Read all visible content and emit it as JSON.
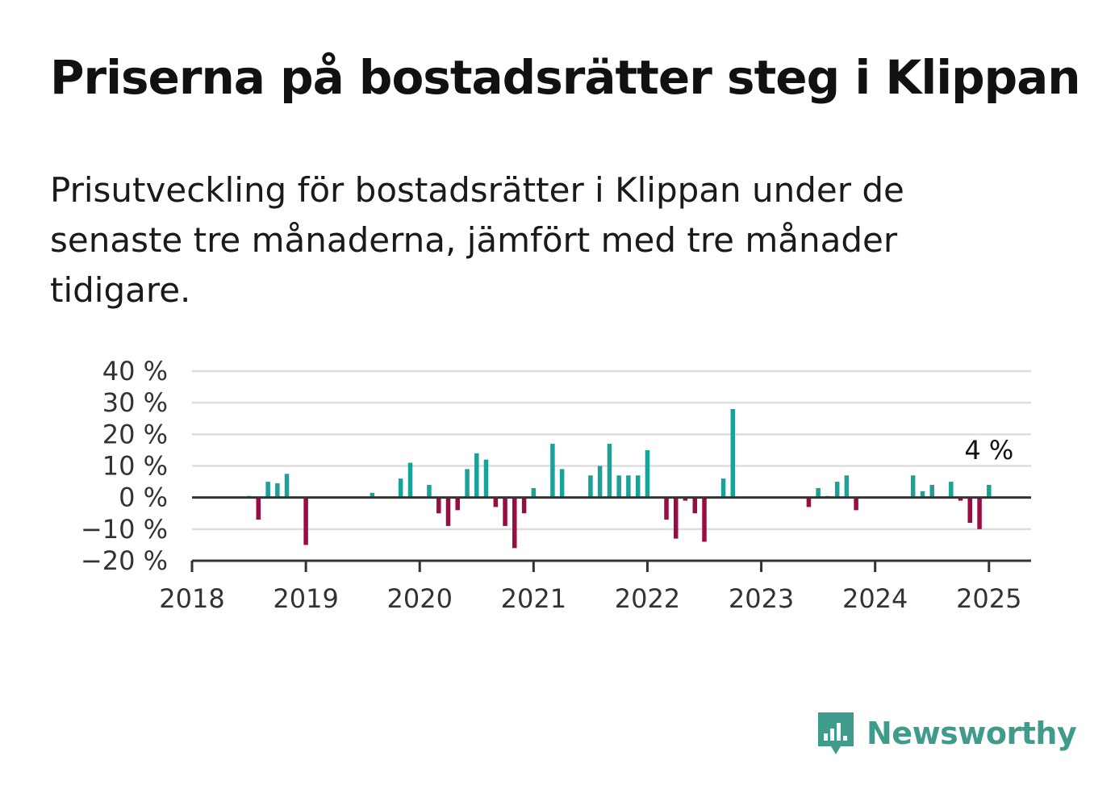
{
  "title": "Priserna på bostadsrätter steg i Klippan",
  "subtitle": "Prisutveckling för bostadsrätter i Klippan under de senaste tre månaderna, jämfört med tre månader tidigare.",
  "brand": {
    "name": "Newsworthy",
    "icon": "newsworthy-logo-icon"
  },
  "colors": {
    "positive": "#1aa198",
    "negative": "#990c44",
    "grid": "#dddddd",
    "axis": "#333333"
  },
  "chart_data": {
    "type": "bar",
    "x_unit": "date (year.fraction)",
    "xlim": [
      2018.0,
      2025.37
    ],
    "ylim": [
      -20,
      40
    ],
    "y_ticks": [
      40,
      30,
      20,
      10,
      0,
      -10,
      -20
    ],
    "y_tick_labels": [
      "40 %",
      "30 %",
      "20 %",
      "10 %",
      "0 %",
      "−10 %",
      "−20 %"
    ],
    "x_ticks": [
      2018,
      2019,
      2020,
      2021,
      2022,
      2023,
      2024,
      2025
    ],
    "x_tick_labels": [
      "2018",
      "2019",
      "2020",
      "2021",
      "2022",
      "2023",
      "2024",
      "2025"
    ],
    "grid": true,
    "annotation": {
      "text": "4 %",
      "x": 2025.0,
      "y": 4
    },
    "x": [
      2018.5,
      2018.583,
      2018.667,
      2018.75,
      2018.833,
      2019.0,
      2019.583,
      2019.833,
      2019.917,
      2020.083,
      2020.167,
      2020.25,
      2020.333,
      2020.417,
      2020.5,
      2020.583,
      2020.667,
      2020.75,
      2020.833,
      2020.917,
      2021.0,
      2021.167,
      2021.25,
      2021.5,
      2021.583,
      2021.667,
      2021.75,
      2021.833,
      2021.917,
      2022.0,
      2022.167,
      2022.25,
      2022.333,
      2022.417,
      2022.5,
      2022.667,
      2022.75,
      2023.417,
      2023.5,
      2023.583,
      2023.667,
      2023.75,
      2023.833,
      2024.333,
      2024.417,
      2024.5,
      2024.667,
      2024.75,
      2024.833,
      2024.917,
      2025.0
    ],
    "values": [
      0.5,
      -7,
      5,
      4.5,
      7.5,
      -15,
      1.5,
      6,
      11,
      4,
      -5,
      -9,
      -4,
      9,
      14,
      12,
      -3,
      -9,
      -16,
      -5,
      3,
      17,
      9,
      7,
      10,
      17,
      7,
      7,
      7,
      15,
      -7,
      -13,
      -1,
      -5,
      -14,
      6,
      28,
      -3,
      3,
      0.5,
      5,
      7,
      -4,
      7,
      2,
      4,
      5,
      -1,
      -8,
      -10,
      4
    ]
  }
}
